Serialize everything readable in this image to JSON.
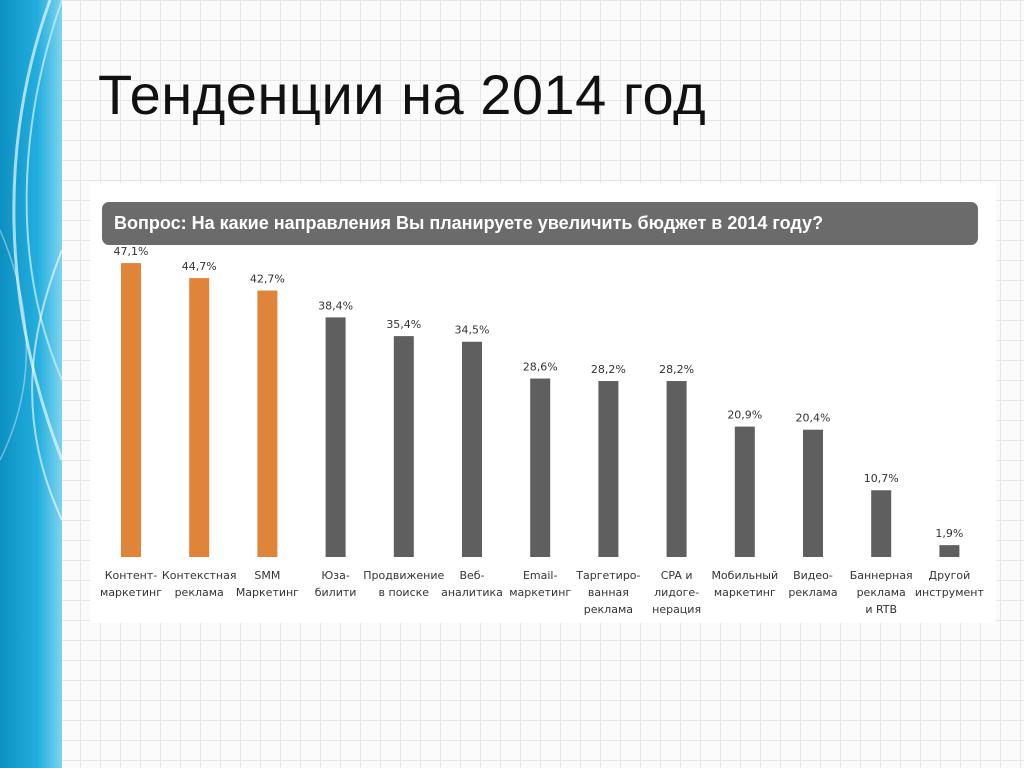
{
  "slide": {
    "title": "Тенденции на 2014 год"
  },
  "colors": {
    "accent": "#e0843a",
    "bar": "#5f5f5f",
    "question_bg": "#6b6b6b"
  },
  "chart_data": {
    "type": "bar",
    "title": "Вопрос: На какие направления Вы планируете увеличить бюджет в 2014 году?",
    "xlabel": "",
    "ylabel": "",
    "unit": "%",
    "ylim": [
      0,
      50
    ],
    "grid": false,
    "categories": [
      [
        "Контент-",
        "маркетинг"
      ],
      [
        "Контекстная",
        "реклама"
      ],
      [
        "SMM",
        "Маркетинг"
      ],
      [
        "Юза-",
        "билити"
      ],
      [
        "Продвижение",
        "в поиске"
      ],
      [
        "Веб-",
        "аналитика"
      ],
      [
        "Email-",
        "маркетинг"
      ],
      [
        "Таргетиро-",
        "ванная",
        "реклама"
      ],
      [
        "CPA и",
        "лидоге-",
        "нерация"
      ],
      [
        "Мобильный",
        "маркетинг"
      ],
      [
        "Видео-",
        "реклама"
      ],
      [
        "Баннерная",
        "реклама",
        "и RTB"
      ],
      [
        "Другой",
        "инструмент"
      ]
    ],
    "values": [
      47.1,
      44.7,
      42.7,
      38.4,
      35.4,
      34.5,
      28.6,
      28.2,
      28.2,
      20.9,
      20.4,
      10.7,
      1.9
    ],
    "value_labels": [
      "47,1%",
      "44,7%",
      "42,7%",
      "38,4%",
      "35,4%",
      "34,5%",
      "28,6%",
      "28,2%",
      "28,2%",
      "20,9%",
      "20,4%",
      "10,7%",
      "1,9%"
    ],
    "highlighted": [
      true,
      true,
      true,
      false,
      false,
      false,
      false,
      false,
      false,
      false,
      false,
      false,
      false
    ]
  }
}
